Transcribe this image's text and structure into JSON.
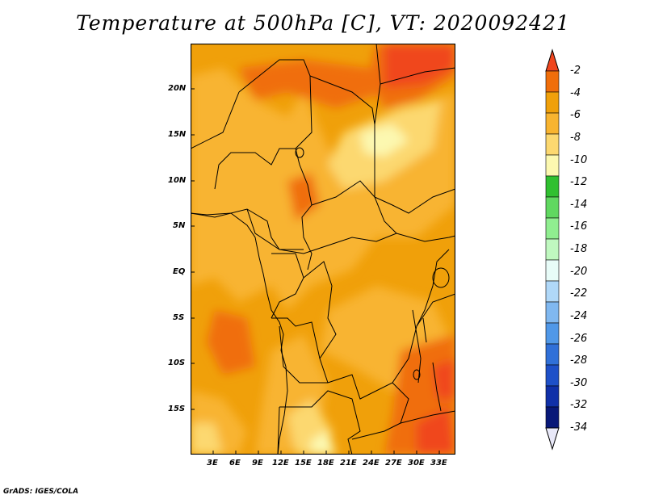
{
  "title": "Temperature at 500hPa [C], VT: 2020092421",
  "footer": "GrADS: IGES/COLA",
  "map": {
    "lat_labels": [
      "20N",
      "15N",
      "10N",
      "5N",
      "EQ",
      "5S",
      "10S",
      "15S"
    ],
    "lon_labels": [
      "3E",
      "6E",
      "9E",
      "12E",
      "15E",
      "18E",
      "21E",
      "24E",
      "27E",
      "30E",
      "33E"
    ]
  },
  "colorbar": {
    "labels": [
      "-2",
      "-4",
      "-6",
      "-8",
      "-10",
      "-12",
      "-14",
      "-16",
      "-18",
      "-20",
      "-22",
      "-24",
      "-26",
      "-28",
      "-30",
      "-32",
      "-34"
    ],
    "colors": [
      "#f0461e",
      "#f06e0a",
      "#f0a00a",
      "#f8b430",
      "#fcd870",
      "#fcf8b0",
      "#30c030",
      "#60d860",
      "#90ee90",
      "#c0f8c0",
      "#e8fcf8",
      "#b0d8f8",
      "#80b8f0",
      "#5098e8",
      "#3070d8",
      "#1e50c8",
      "#1030a8",
      "#081878",
      "#e8e8f8"
    ],
    "top_arrow_color": "#f0461e",
    "bottom_arrow_color": "#e8e8f8"
  }
}
